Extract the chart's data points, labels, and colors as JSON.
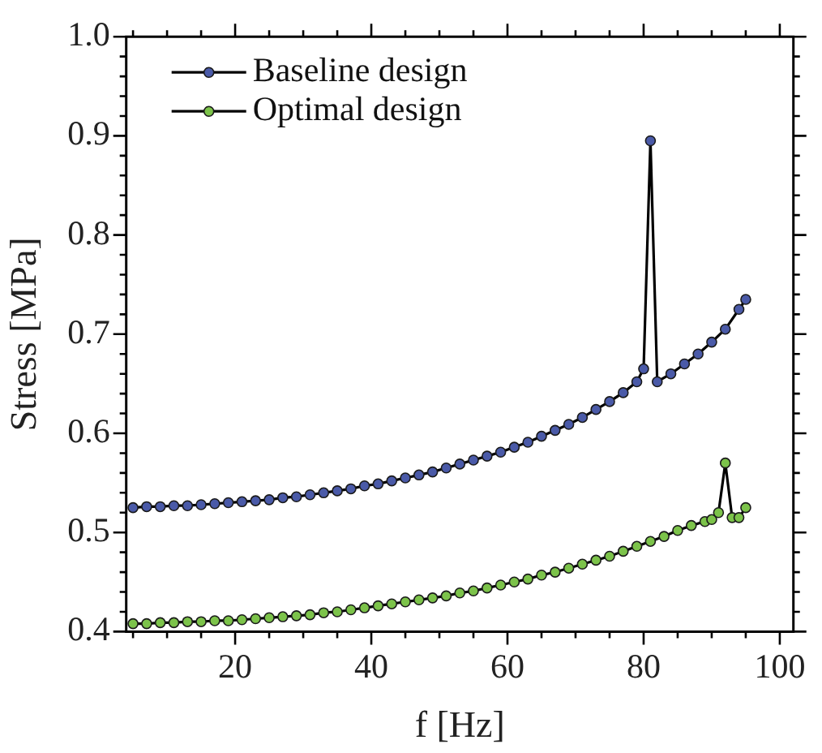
{
  "chart_data": {
    "type": "line",
    "xlabel": "f [Hz]",
    "ylabel": "Stress [MPa]",
    "xlim": [
      4,
      102
    ],
    "ylim": [
      0.4,
      1.0
    ],
    "xticks": [
      {
        "value": 5,
        "label": null
      },
      {
        "value": 10,
        "label": null
      },
      {
        "value": 15,
        "label": null
      },
      20,
      {
        "value": 25,
        "label": null
      },
      {
        "value": 30,
        "label": null
      },
      {
        "value": 35,
        "label": null
      },
      40,
      {
        "value": 45,
        "label": null
      },
      {
        "value": 50,
        "label": null
      },
      {
        "value": 55,
        "label": null
      },
      60,
      {
        "value": 65,
        "label": null
      },
      {
        "value": 70,
        "label": null
      },
      {
        "value": 75,
        "label": null
      },
      80,
      {
        "value": 85,
        "label": null
      },
      {
        "value": 90,
        "label": null
      },
      {
        "value": 95,
        "label": null
      },
      100
    ],
    "yticks": [
      {
        "value": 0.4,
        "label": "0.4"
      },
      {
        "value": 0.42,
        "label": null
      },
      {
        "value": 0.44,
        "label": null
      },
      {
        "value": 0.46,
        "label": null
      },
      {
        "value": 0.48,
        "label": null
      },
      {
        "value": 0.5,
        "label": "0.5"
      },
      {
        "value": 0.52,
        "label": null
      },
      {
        "value": 0.54,
        "label": null
      },
      {
        "value": 0.56,
        "label": null
      },
      {
        "value": 0.58,
        "label": null
      },
      {
        "value": 0.6,
        "label": "0.6"
      },
      {
        "value": 0.62,
        "label": null
      },
      {
        "value": 0.64,
        "label": null
      },
      {
        "value": 0.66,
        "label": null
      },
      {
        "value": 0.68,
        "label": null
      },
      {
        "value": 0.7,
        "label": "0.7"
      },
      {
        "value": 0.72,
        "label": null
      },
      {
        "value": 0.74,
        "label": null
      },
      {
        "value": 0.76,
        "label": null
      },
      {
        "value": 0.78,
        "label": null
      },
      {
        "value": 0.8,
        "label": "0.8"
      },
      {
        "value": 0.82,
        "label": null
      },
      {
        "value": 0.84,
        "label": null
      },
      {
        "value": 0.86,
        "label": null
      },
      {
        "value": 0.88,
        "label": null
      },
      {
        "value": 0.9,
        "label": "0.9"
      },
      {
        "value": 0.92,
        "label": null
      },
      {
        "value": 0.94,
        "label": null
      },
      {
        "value": 0.96,
        "label": null
      },
      {
        "value": 0.98,
        "label": null
      },
      {
        "value": 1.0,
        "label": "1.0"
      }
    ],
    "grid": false,
    "legend": "top left",
    "marker": "circle",
    "line_style": "solid",
    "series": [
      {
        "name": "Baseline design",
        "color": "#4a5aa8",
        "x": [
          5,
          7,
          9,
          11,
          13,
          15,
          17,
          19,
          21,
          23,
          25,
          27,
          29,
          31,
          33,
          35,
          37,
          39,
          41,
          43,
          45,
          47,
          49,
          51,
          53,
          55,
          57,
          59,
          61,
          63,
          65,
          67,
          69,
          71,
          73,
          75,
          77,
          79,
          80,
          81,
          82,
          84,
          86,
          88,
          90,
          92,
          94,
          95
        ],
        "values": [
          0.525,
          0.526,
          0.526,
          0.527,
          0.527,
          0.528,
          0.529,
          0.53,
          0.531,
          0.532,
          0.533,
          0.535,
          0.536,
          0.538,
          0.54,
          0.542,
          0.544,
          0.547,
          0.549,
          0.552,
          0.555,
          0.558,
          0.561,
          0.565,
          0.569,
          0.573,
          0.577,
          0.581,
          0.586,
          0.591,
          0.597,
          0.603,
          0.609,
          0.616,
          0.624,
          0.632,
          0.641,
          0.652,
          0.665,
          0.895,
          0.652,
          0.66,
          0.67,
          0.68,
          0.692,
          0.705,
          0.725,
          0.735
        ]
      },
      {
        "name": "Optimal design",
        "color": "#7cc34a",
        "x": [
          5,
          7,
          9,
          11,
          13,
          15,
          17,
          19,
          21,
          23,
          25,
          27,
          29,
          31,
          33,
          35,
          37,
          39,
          41,
          43,
          45,
          47,
          49,
          51,
          53,
          55,
          57,
          59,
          61,
          63,
          65,
          67,
          69,
          71,
          73,
          75,
          77,
          79,
          81,
          83,
          85,
          87,
          89,
          90,
          91,
          92,
          93,
          94,
          95
        ],
        "values": [
          0.408,
          0.408,
          0.409,
          0.409,
          0.41,
          0.41,
          0.411,
          0.411,
          0.412,
          0.413,
          0.414,
          0.415,
          0.416,
          0.417,
          0.419,
          0.42,
          0.422,
          0.424,
          0.426,
          0.428,
          0.43,
          0.432,
          0.434,
          0.436,
          0.439,
          0.441,
          0.444,
          0.447,
          0.45,
          0.453,
          0.457,
          0.46,
          0.464,
          0.468,
          0.472,
          0.476,
          0.481,
          0.486,
          0.491,
          0.496,
          0.502,
          0.507,
          0.511,
          0.513,
          0.52,
          0.57,
          0.515,
          0.515,
          0.525
        ]
      }
    ]
  }
}
